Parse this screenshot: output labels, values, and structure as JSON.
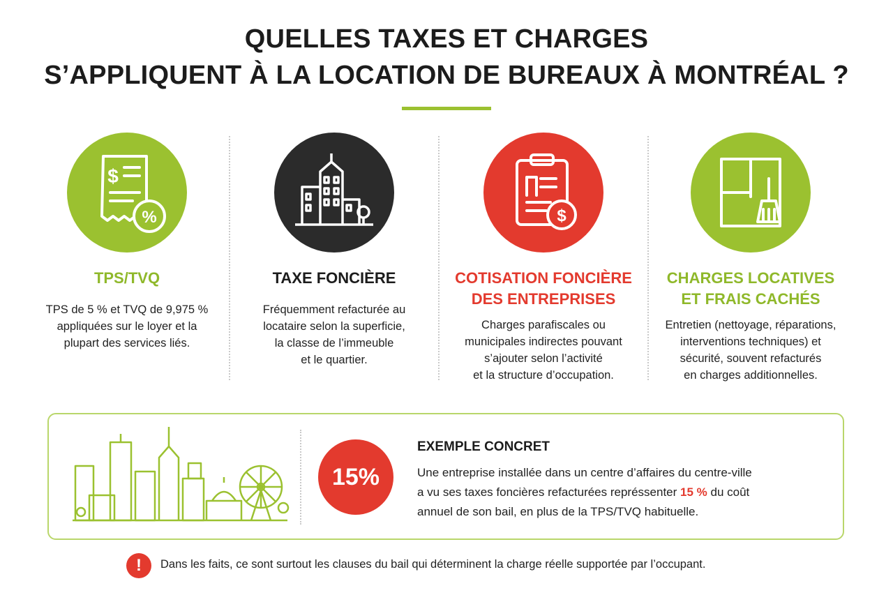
{
  "title": {
    "line1": "QUELLES TAXES ET CHARGES",
    "line2": "S’APPLIQUENT À LA LOCATION DE BUREAUX À MONTRÉAL ?"
  },
  "colors": {
    "green": "#9bc130",
    "dark": "#2b2b2b",
    "red": "#e33a2e"
  },
  "columns": [
    {
      "icon": "receipt-percent-icon",
      "title": "TPS/TVQ",
      "text": [
        "TPS de 5 % et TVQ de 9,975 %",
        "appliquées sur le loyer et la",
        "plupart des services liés."
      ]
    },
    {
      "icon": "buildings-icon",
      "title": "TAXE FONCIÈRE",
      "text": [
        "Fréquemment refacturée au",
        "locataire selon la superficie,",
        "la classe de l’immeuble",
        "et le quartier."
      ]
    },
    {
      "icon": "clipboard-dollar-icon",
      "title": "COTISATION FONCIÈRE DES ENTREPRISES",
      "title_lines": [
        "COTISATION FONCIÈRE",
        "DES ENTREPRISES"
      ],
      "text": [
        "Charges parafiscales ou",
        "municipales indirectes pouvant",
        "s’ajouter selon l’activité",
        "et la structure d’occupation."
      ]
    },
    {
      "icon": "window-broom-icon",
      "title_lines": [
        "CHARGES LOCATIVES",
        "ET FRAIS CACHÉS"
      ],
      "text": [
        "Entretien (nettoyage, réparations,",
        "interventions techniques) et",
        "sécurité, souvent refacturés",
        "en charges additionnelles."
      ]
    }
  ],
  "example": {
    "icon": "city-skyline-icon",
    "percent": "15%",
    "title": "EXEMPLE CONCRET",
    "text_1": "Une entreprise installée dans un centre d’affaires du centre-ville",
    "text_2": "a vu ses taxes foncières refacturées représsenter ",
    "highlight": "15 %",
    "text_3": " du coût",
    "text_4": "annuel de son bail, en plus de la TPS/TVQ habituelle."
  },
  "note": {
    "icon": "exclamation-icon",
    "icon_glyph": "!",
    "text": "Dans les faits, ce sont surtout les clauses du bail qui déterminent la charge réelle supportée par l’occupant."
  }
}
